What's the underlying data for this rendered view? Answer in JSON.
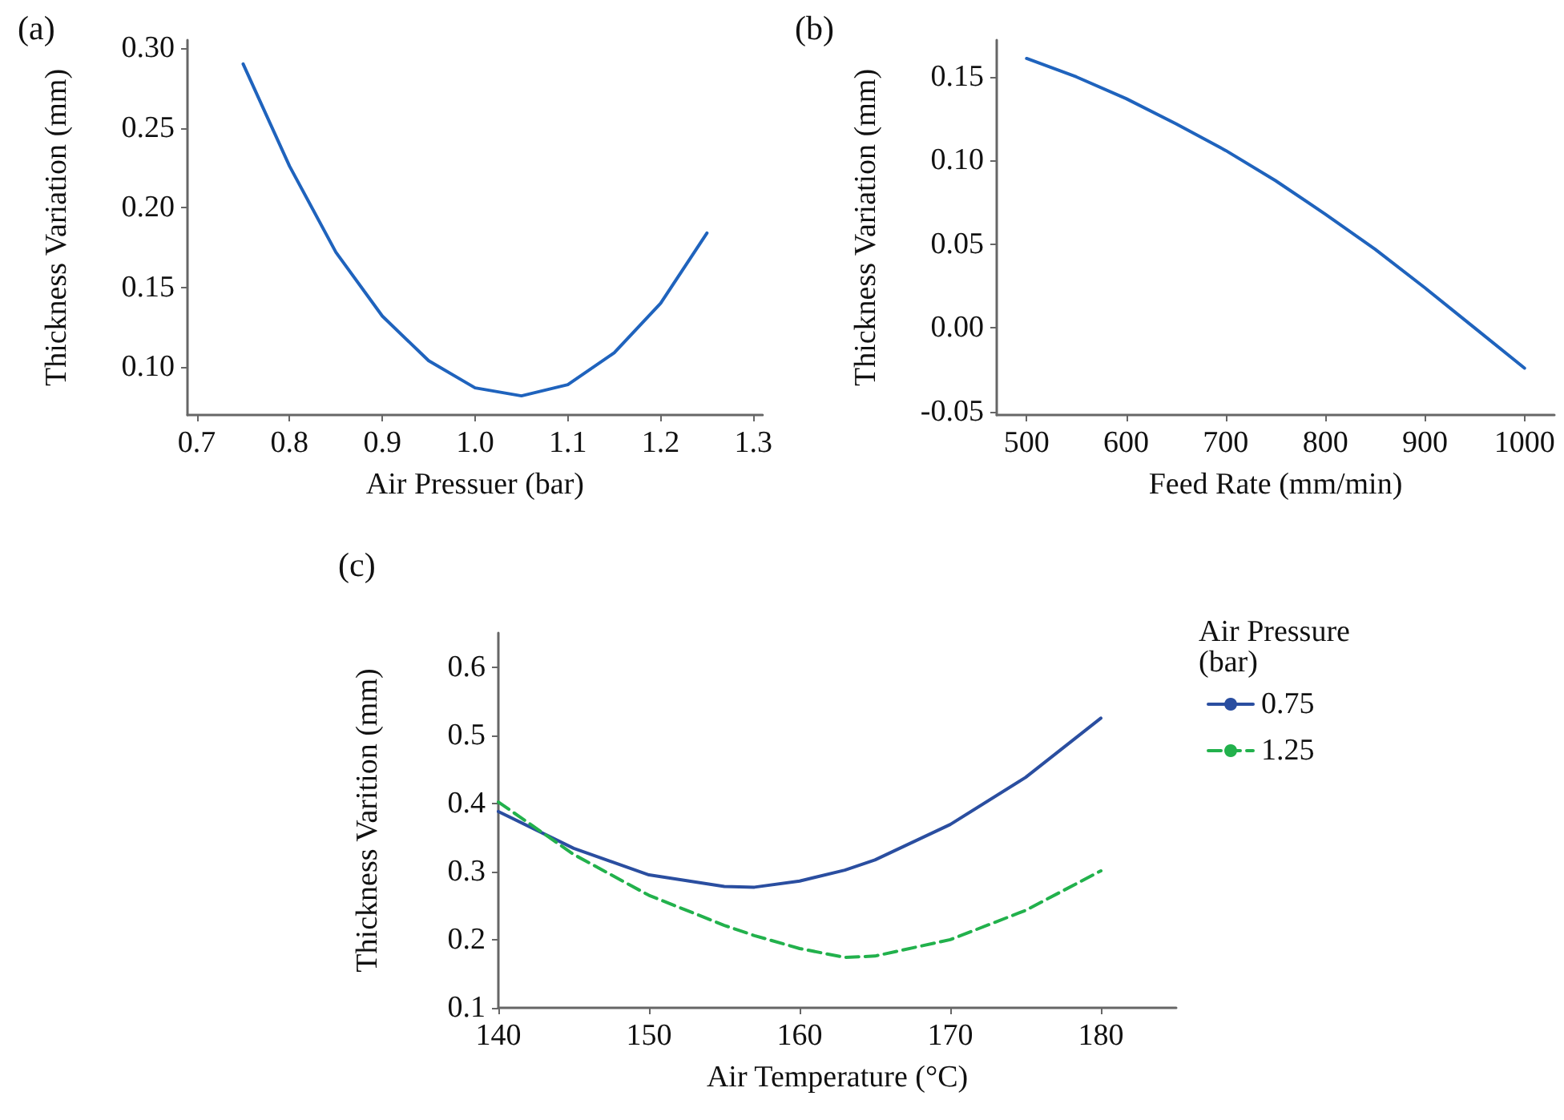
{
  "chart_data": [
    {
      "type": "line",
      "title": "(a)",
      "xlabel": "Air Pressuer (bar)",
      "ylabel": "Thickness Variation (mm)",
      "x": [
        0.75,
        0.8,
        0.85,
        0.9,
        0.95,
        1.0,
        1.05,
        1.1,
        1.15,
        1.2,
        1.25
      ],
      "values": [
        0.29,
        0.226,
        0.172,
        0.132,
        0.104,
        0.087,
        0.082,
        0.089,
        0.109,
        0.14,
        0.184
      ],
      "color": "#1f63bd",
      "xlim": [
        0.69,
        1.31
      ],
      "ylim": [
        0.07,
        0.305
      ],
      "xticks": [
        0.7,
        0.8,
        0.9,
        {
          "value": 1.0,
          "label": "1.0"
        },
        1.1,
        1.2,
        1.3
      ],
      "yticks": [
        {
          "value": 0.1,
          "label": "0.10"
        },
        0.15,
        {
          "value": 0.2,
          "label": "0.20"
        },
        0.25,
        {
          "value": 0.3,
          "label": "0.30"
        }
      ],
      "grid": false,
      "legend": false,
      "marker": "none",
      "line_style": "solid"
    },
    {
      "type": "line",
      "title": "(b)",
      "xlabel": "Feed Rate (mm/min)",
      "ylabel": "Thickness Variation (mm)",
      "x": [
        500,
        550,
        600,
        650,
        700,
        750,
        800,
        850,
        900,
        950,
        1000
      ],
      "values": [
        0.161,
        0.15,
        0.137,
        0.122,
        0.106,
        0.088,
        0.068,
        0.047,
        0.024,
        0.0,
        -0.024
      ],
      "color": "#1f63bd",
      "xlim": [
        470,
        1030
      ],
      "ylim": [
        -0.052,
        0.172
      ],
      "xticks": [
        500,
        600,
        700,
        800,
        900,
        1000
      ],
      "yticks": [
        -0.05,
        {
          "value": 0,
          "label": "0.00"
        },
        0.05,
        {
          "value": 0.1,
          "label": "0.10"
        },
        0.15
      ],
      "grid": false,
      "legend": false,
      "marker": "none",
      "line_style": "solid"
    },
    {
      "type": "line",
      "title": "(c)",
      "xlabel": "Air Temperature (°C)",
      "ylabel": "Thickness Varition (mm)",
      "legend_title": "Air Pressure (bar)",
      "x": [
        140,
        145,
        150,
        155,
        157,
        160,
        163,
        165,
        170,
        175,
        180
      ],
      "series": [
        {
          "name": "0.75",
          "color": "#2a4ea0",
          "line_style": "solid",
          "values": [
            0.388,
            0.334,
            0.295,
            0.278,
            0.277,
            0.286,
            0.302,
            0.317,
            0.369,
            0.438,
            0.525
          ]
        },
        {
          "name": "1.25",
          "color": "#22b14c",
          "line_style": "dashed",
          "values": [
            0.402,
            0.325,
            0.265,
            0.221,
            0.206,
            0.187,
            0.174,
            0.176,
            0.2,
            0.243,
            0.301
          ]
        }
      ],
      "xlim": [
        140,
        185
      ],
      "ylim": [
        0.1,
        0.65
      ],
      "xticks": [
        140,
        150,
        160,
        170,
        180
      ],
      "yticks": [
        0.1,
        0.2,
        0.3,
        0.4,
        0.5,
        0.6
      ],
      "grid": false,
      "legend": "top right",
      "marker": "none"
    }
  ]
}
